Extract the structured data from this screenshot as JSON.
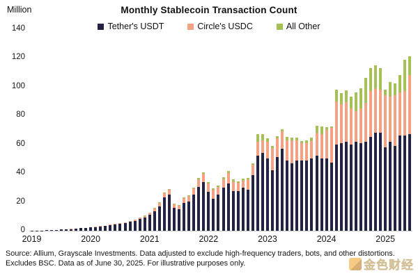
{
  "title": "Monthly Stablecoin Transaction Count",
  "y_axis": {
    "unit_label": "Million",
    "ticks": [
      0,
      20,
      40,
      60,
      80,
      100,
      120,
      140
    ],
    "max": 140
  },
  "x_axis": {
    "year_labels": [
      "2019",
      "2020",
      "2021",
      "2022",
      "2023",
      "2024",
      "2025"
    ],
    "year_start_indices": [
      0,
      12,
      24,
      36,
      48,
      60,
      72
    ]
  },
  "legend": [
    {
      "label": "Tether's USDT",
      "color": "#232144"
    },
    {
      "label": "Circle's USDC",
      "color": "#f6a184"
    },
    {
      "label": "All Other",
      "color": "#a5c053"
    }
  ],
  "source_note": "Source: Allium, Grayscale Investments. Data adjusted to exclude high-frequency traders, bots, and other distortions. Excludes BSC. Data as of June 30, 2025. For illustrative purposes only.",
  "watermark_text": "金色财经",
  "chart_data": {
    "type": "bar",
    "stacked": true,
    "title": "Monthly Stablecoin Transaction Count",
    "ylabel": "Million",
    "ylim": [
      0,
      140
    ],
    "grid": false,
    "legend_position": "top",
    "x": [
      "2019-01",
      "2019-02",
      "2019-03",
      "2019-04",
      "2019-05",
      "2019-06",
      "2019-07",
      "2019-08",
      "2019-09",
      "2019-10",
      "2019-11",
      "2019-12",
      "2020-01",
      "2020-02",
      "2020-03",
      "2020-04",
      "2020-05",
      "2020-06",
      "2020-07",
      "2020-08",
      "2020-09",
      "2020-10",
      "2020-11",
      "2020-12",
      "2021-01",
      "2021-02",
      "2021-03",
      "2021-04",
      "2021-05",
      "2021-06",
      "2021-07",
      "2021-08",
      "2021-09",
      "2021-10",
      "2021-11",
      "2021-12",
      "2022-01",
      "2022-02",
      "2022-03",
      "2022-04",
      "2022-05",
      "2022-06",
      "2022-07",
      "2022-08",
      "2022-09",
      "2022-10",
      "2022-11",
      "2022-12",
      "2023-01",
      "2023-02",
      "2023-03",
      "2023-04",
      "2023-05",
      "2023-06",
      "2023-07",
      "2023-08",
      "2023-09",
      "2023-10",
      "2023-11",
      "2023-12",
      "2024-01",
      "2024-02",
      "2024-03",
      "2024-04",
      "2024-05",
      "2024-06",
      "2024-07",
      "2024-08",
      "2024-09",
      "2024-10",
      "2024-11",
      "2024-12",
      "2025-01",
      "2025-02",
      "2025-03",
      "2025-04",
      "2025-05",
      "2025-06"
    ],
    "series": [
      {
        "name": "Tether's USDT",
        "color": "#232144",
        "values": [
          0.1,
          0.15,
          0.2,
          0.3,
          0.5,
          0.7,
          0.9,
          1.0,
          1.2,
          1.4,
          1.7,
          2.0,
          2.2,
          2.6,
          3.0,
          3.4,
          3.9,
          4.4,
          4.8,
          5.4,
          6.3,
          7.0,
          8.4,
          9.4,
          11,
          13.5,
          17,
          23,
          25,
          16,
          15,
          19.5,
          20.5,
          25,
          30.5,
          34,
          27,
          22,
          25,
          30,
          33,
          27.5,
          27.5,
          30,
          28.5,
          38.5,
          52,
          54,
          50,
          42,
          51,
          57,
          49,
          47,
          49,
          49,
          49,
          50,
          52,
          50,
          50,
          47.5,
          60,
          61,
          62,
          60,
          62,
          61,
          62,
          65,
          68,
          68,
          58,
          62,
          59,
          66,
          66,
          67
        ]
      },
      {
        "name": "Circle's USDC",
        "color": "#f6a184",
        "values": [
          0,
          0,
          0,
          0,
          0,
          0,
          0,
          0.05,
          0.05,
          0.05,
          0.1,
          0.1,
          0.1,
          0.15,
          0.2,
          0.2,
          0.25,
          0.3,
          0.4,
          0.5,
          0.6,
          0.7,
          0.8,
          0.9,
          1.5,
          2,
          2.5,
          3,
          3.5,
          2.5,
          2.5,
          3,
          3.5,
          4.5,
          5,
          5.5,
          6,
          6.5,
          5.5,
          5.5,
          7,
          7,
          6,
          5,
          7,
          7.5,
          10,
          9,
          12,
          15.5,
          13,
          12,
          14,
          16,
          14,
          12,
          12,
          12.5,
          16,
          17,
          20,
          24,
          30,
          27,
          27.5,
          25,
          21,
          24,
          27,
          32,
          31,
          30,
          36,
          31,
          35,
          30,
          31,
          41
        ]
      },
      {
        "name": "All Other",
        "color": "#a5c053",
        "values": [
          0,
          0,
          0,
          0,
          0,
          0,
          0,
          0,
          0,
          0,
          0,
          0,
          0,
          0,
          0,
          0,
          0.05,
          0.05,
          0.1,
          0.1,
          0.1,
          0.15,
          0.15,
          0.2,
          0.3,
          0.3,
          0.4,
          0.5,
          0.5,
          0.4,
          0.4,
          0.5,
          0.5,
          0.6,
          1,
          1,
          1,
          1,
          1,
          1.5,
          1.5,
          1,
          1,
          1,
          1,
          1,
          5,
          4,
          2,
          1.5,
          1.5,
          1.5,
          2,
          1.5,
          1.5,
          1.5,
          2,
          2,
          5,
          5.5,
          2,
          1,
          8,
          7.5,
          8,
          8,
          13,
          14,
          17,
          16,
          16,
          15,
          4,
          10.5,
          8.5,
          12,
          22,
          13
        ]
      }
    ]
  }
}
